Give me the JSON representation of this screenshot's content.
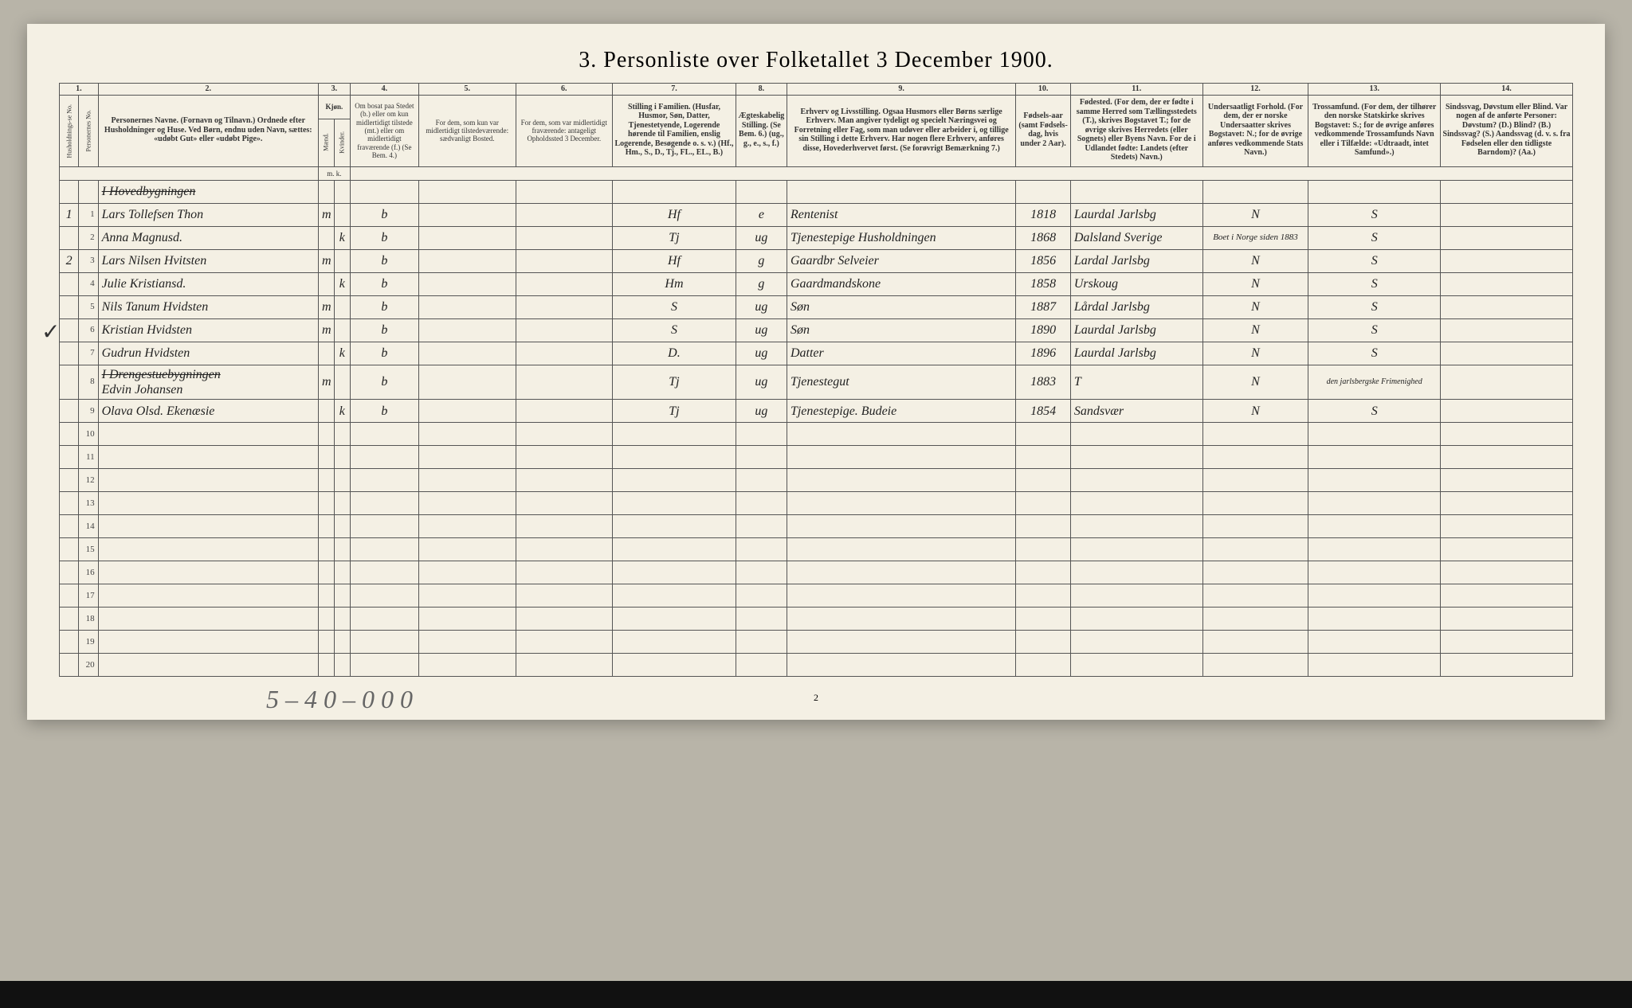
{
  "title": "3.  Personliste over Folketallet 3 December 1900.",
  "colnums": [
    "1.",
    "2.",
    "3.",
    "4.",
    "5.",
    "6.",
    "7.",
    "8.",
    "9.",
    "10.",
    "11.",
    "12.",
    "13.",
    "14."
  ],
  "headers": {
    "c1a": "Husholdnings-se No.",
    "c1b": "Personernes No.",
    "c2": "Personernes Navne.\n(Fornavn og Tilnavn.)\nOrdnede efter Husholdninger og Huse.\nVed Børn, endnu uden Navn, sættes: «udøbt Gut» eller «udøbt Pige».",
    "c3m": "Kjøn.",
    "c3a": "Mænd.",
    "c3b": "Kvinder.",
    "c4": "Om bosat paa Stedet (b.) eller om kun midlertidigt tilstede (mt.) eller om midlertidigt fraværende (f.)\n(Se Bem. 4.)",
    "c5": "For dem, som kun var midlertidigt tilstedeværende:\nsædvanligt Bosted.",
    "c6": "For dem, som var midlertidigt fraværende:\nantageligt Opholdssted 3 December.",
    "c7": "Stilling i Familien.\n(Husfar, Husmor, Søn, Datter, Tjenestetyende, Logerende hørende til Familien, enslig Logerende, Besøgende o. s. v.)\n(Hf., Hm., S., D., Tj., FL., EL., B.)",
    "c8": "Ægteskabelig Stilling.\n(Se Bem. 6.)\n(ug., g., e., s., f.)",
    "c9": "Erhverv og Livsstilling.\nOgsaa Husmors eller Børns særlige Erhverv. Man angiver tydeligt og specielt Næringsvei og Forretning eller Fag, som man udøver eller arbeider i, og tillige sin Stilling i dette Erhverv. Har nogen flere Erhverv, anføres disse, Hovederhvervet først.\n(Se forøvrigt Bemærkning 7.)",
    "c10": "Fødsels-aar\n(samt Fødsels-dag, hvis under 2 Aar).",
    "c11": "Fødested.\n(For dem, der er fødte i samme Herred som Tællingsstedets (T.), skrives Bogstavet T.; for de øvrige skrives Herredets (eller Sognets) eller Byens Navn. For de i Udlandet fødte: Landets (efter Stedets) Navn.)",
    "c12": "Undersaatligt Forhold.\n(For dem, der er norske Undersaatter skrives Bogstavet: N.; for de øvrige anføres vedkommende Stats Navn.)",
    "c13": "Trossamfund.\n(For dem, der tilhører den norske Statskirke skrives Bogstavet: S.; for de øvrige anføres vedkommende Trossamfunds Navn eller i Tilfælde: «Udtraadt, intet Samfund».)",
    "c14": "Sindssvag, Døvstum eller Blind.\nVar nogen af de anførte Personer:\nDøvstum? (D.)\nBlind? (B.)\nSindssvag? (S.)\nAandssvag (d. v. s. fra Fødselen eller den tidligste Barndom)? (Aa.)"
  },
  "mk": "m.  k.",
  "rows": [
    {
      "hh": "",
      "no": "",
      "name_pre": "I Hovedbygningen",
      "strike": true
    },
    {
      "hh": "1",
      "no": "1",
      "name": "Lars Tollefsen Thon",
      "m": "m",
      "k": "",
      "res": "b",
      "c5": "",
      "c6": "",
      "fam": "Hf",
      "civ": "e",
      "occ": "Rentenist",
      "yr": "1818",
      "place": "Laurdal Jarlsbg",
      "nat": "N",
      "rel": "S",
      "c14": ""
    },
    {
      "hh": "",
      "no": "2",
      "name": "Anna Magnusd.",
      "m": "",
      "k": "k",
      "res": "b",
      "c5": "",
      "c6": "",
      "fam": "Tj",
      "civ": "ug",
      "occ": "Tjenestepige Husholdningen",
      "yr": "1868",
      "place": "Dalsland Sverige",
      "nat": "Boet i Norge siden 1883",
      "rel": "S",
      "c14": ""
    },
    {
      "hh": "2",
      "no": "3",
      "name": "Lars Nilsen Hvitsten",
      "m": "m",
      "k": "",
      "res": "b",
      "c5": "",
      "c6": "",
      "fam": "Hf",
      "civ": "g",
      "occ": "Gaardbr Selveier",
      "yr": "1856",
      "place": "Lardal Jarlsbg",
      "nat": "N",
      "rel": "S",
      "c14": ""
    },
    {
      "hh": "",
      "no": "4",
      "name": "Julie Kristiansd.",
      "m": "",
      "k": "k",
      "res": "b",
      "c5": "",
      "c6": "",
      "fam": "Hm",
      "civ": "g",
      "occ": "Gaardmandskone",
      "yr": "1858",
      "place": "Urskoug",
      "nat": "N",
      "rel": "S",
      "c14": ""
    },
    {
      "hh": "",
      "no": "5",
      "name": "Nils Tanum Hvidsten",
      "m": "m",
      "k": "",
      "res": "b",
      "c5": "",
      "c6": "",
      "fam": "S",
      "civ": "ug",
      "occ": "Søn",
      "yr": "1887",
      "place": "Lårdal Jarlsbg",
      "nat": "N",
      "rel": "S",
      "c14": ""
    },
    {
      "hh": "",
      "no": "6",
      "name": "Kristian Hvidsten",
      "m": "m",
      "k": "",
      "res": "b",
      "c5": "",
      "c6": "",
      "fam": "S",
      "civ": "ug",
      "occ": "Søn",
      "yr": "1890",
      "place": "Laurdal Jarlsbg",
      "nat": "N",
      "rel": "S",
      "c14": ""
    },
    {
      "hh": "",
      "no": "7",
      "name": "Gudrun Hvidsten",
      "m": "",
      "k": "k",
      "res": "b",
      "c5": "",
      "c6": "",
      "fam": "D.",
      "civ": "ug",
      "occ": "Datter",
      "yr": "1896",
      "place": "Laurdal Jarlsbg",
      "nat": "N",
      "rel": "S",
      "c14": ""
    },
    {
      "hh": "",
      "no": "8",
      "name_pre": "I Drengestuebygningen",
      "strike": true,
      "name": "Edvin Johansen",
      "m": "m",
      "k": "",
      "res": "b",
      "c5": "",
      "c6": "",
      "fam": "Tj",
      "civ": "ug",
      "occ": "Tjenestegut",
      "yr": "1883",
      "place": "T",
      "nat": "N",
      "rel": "den jarlsbergske Frimenighed",
      "c14": ""
    },
    {
      "hh": "",
      "no": "9",
      "name": "Olava Olsd. Ekenæsie",
      "m": "",
      "k": "k",
      "res": "b",
      "c5": "",
      "c6": "",
      "fam": "Tj",
      "civ": "ug",
      "occ": "Tjenestepige. Budeie",
      "yr": "1854",
      "place": "Sandsvær",
      "nat": "N",
      "rel": "S",
      "c14": ""
    }
  ],
  "empty_rows": [
    10,
    11,
    12,
    13,
    14,
    15,
    16,
    17,
    18,
    19,
    20
  ],
  "scrawl": "5 – 4 0 – 0 0 0",
  "pagenum": "2",
  "colwidths": {
    "c1a": 22,
    "c1b": 22,
    "c2": 250,
    "c3a": 18,
    "c3b": 18,
    "c4": 78,
    "c5": 110,
    "c6": 110,
    "c7": 140,
    "c8": 58,
    "c9": 260,
    "c10": 62,
    "c11": 150,
    "c12": 120,
    "c13": 150,
    "c14": 150
  },
  "colors": {
    "page": "#f4f0e4",
    "bg": "#b8b4a8",
    "line": "#555",
    "ink": "#222"
  }
}
